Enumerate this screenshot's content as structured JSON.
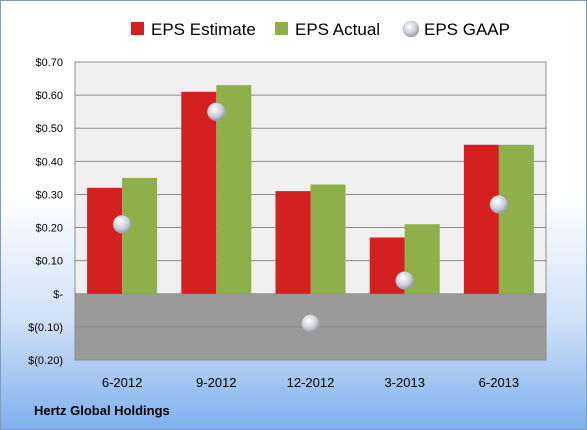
{
  "footer": {
    "company": "Hertz Global Holdings"
  },
  "colors": {
    "estimate": "#d42020",
    "actual": "#8db04a",
    "gaap": "#c9cdd6",
    "plot_positive": "#f0f0f0",
    "plot_negative": "#9a9a9a"
  },
  "chart_data": {
    "type": "bar",
    "categories": [
      "6-2012",
      "9-2012",
      "12-2012",
      "3-2013",
      "6-2013"
    ],
    "series": [
      {
        "name": "EPS Estimate",
        "kind": "bar",
        "values": [
          0.32,
          0.61,
          0.31,
          0.17,
          0.45
        ]
      },
      {
        "name": "EPS Actual",
        "kind": "bar",
        "values": [
          0.35,
          0.63,
          0.33,
          0.21,
          0.45
        ]
      },
      {
        "name": "EPS GAAP",
        "kind": "marker",
        "values": [
          0.21,
          0.55,
          -0.09,
          0.04,
          0.27
        ]
      }
    ],
    "ylim": [
      -0.2,
      0.7
    ],
    "yticks": [
      0.7,
      0.6,
      0.5,
      0.4,
      0.3,
      0.2,
      0.1,
      0.0,
      -0.1,
      -0.2
    ],
    "ytick_labels": [
      "$0.70",
      "$0.60",
      "$0.50",
      "$0.40",
      "$0.30",
      "$0.20",
      "$0.10",
      "$-",
      "$(0.10)",
      "$(0.20)"
    ],
    "legend_position": "top",
    "grid": true
  }
}
